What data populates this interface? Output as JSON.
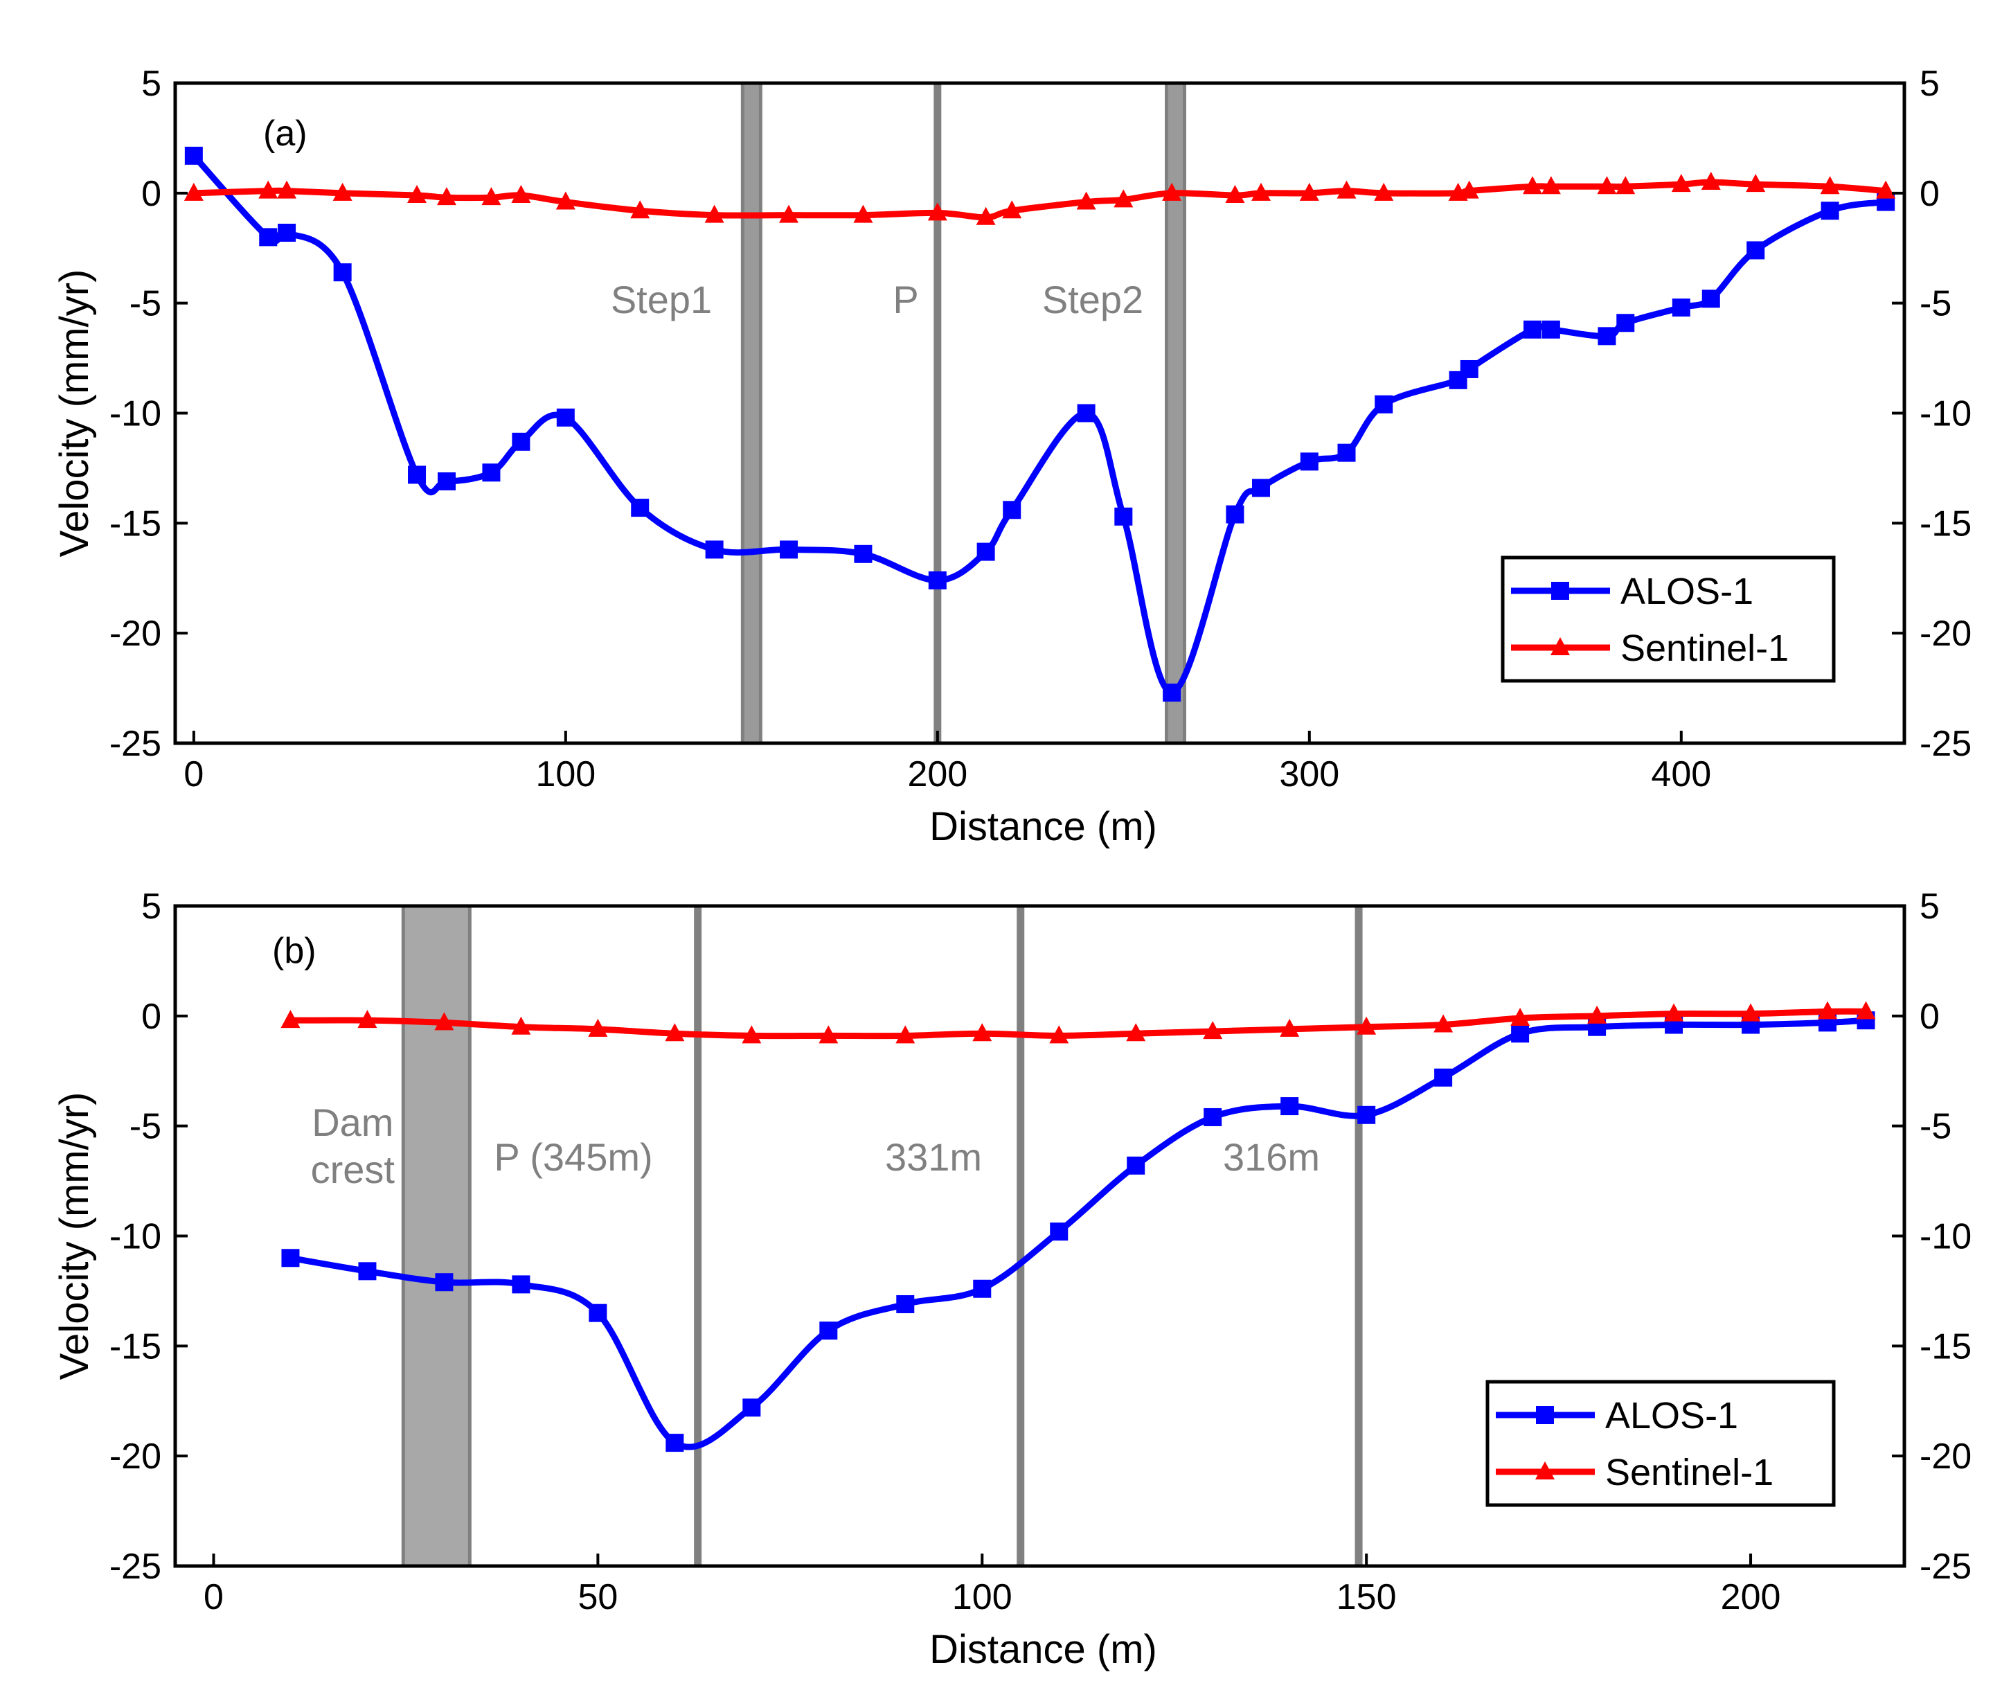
{
  "chart_data": [
    {
      "type": "line",
      "panel_label": "(a)",
      "xlabel": "Distance (m)",
      "ylabel": "Velocity (mm/yr)",
      "xlim": [
        -5,
        460
      ],
      "ylim": [
        -25,
        5
      ],
      "xticks": [
        0,
        100,
        200,
        300,
        400
      ],
      "yticks": [
        5,
        0,
        -5,
        -10,
        -15,
        -20,
        -25
      ],
      "tick_labels_x": [
        "0",
        "100",
        "200",
        "300",
        "400"
      ],
      "tick_labels_y": [
        "5",
        "0",
        "-5",
        "-10",
        "-15",
        "-20",
        "-25"
      ],
      "legend": {
        "position": "bottom-right",
        "entries": [
          "ALOS-1",
          "Sentinel-1"
        ]
      },
      "series": [
        {
          "name": "ALOS-1",
          "color": "#0000ff",
          "marker": "square",
          "x": [
            0,
            20,
            25,
            40,
            60,
            68,
            80,
            88,
            100,
            120,
            140,
            160,
            180,
            200,
            213,
            220,
            240,
            250,
            263,
            280,
            287,
            300,
            310,
            320,
            340,
            343,
            360,
            365,
            380,
            385,
            400,
            408,
            420,
            440,
            455
          ],
          "y": [
            1.7,
            -2.0,
            -1.8,
            -3.6,
            -12.8,
            -13.1,
            -12.7,
            -11.3,
            -10.2,
            -14.3,
            -16.2,
            -16.2,
            -16.4,
            -17.6,
            -16.3,
            -14.4,
            -10.0,
            -14.7,
            -22.7,
            -14.6,
            -13.4,
            -12.2,
            -11.8,
            -9.6,
            -8.5,
            -8.0,
            -6.2,
            -6.2,
            -6.5,
            -5.9,
            -5.2,
            -4.8,
            -2.6,
            -0.8,
            -0.4
          ]
        },
        {
          "name": "Sentinel-1",
          "color": "#ff0000",
          "marker": "triangle",
          "x": [
            0,
            20,
            25,
            40,
            60,
            68,
            80,
            88,
            100,
            120,
            140,
            160,
            180,
            200,
            213,
            220,
            240,
            250,
            263,
            280,
            287,
            300,
            310,
            320,
            340,
            343,
            360,
            365,
            380,
            385,
            400,
            408,
            420,
            440,
            455
          ],
          "y": [
            0.0,
            0.1,
            0.1,
            0.0,
            -0.1,
            -0.2,
            -0.2,
            -0.1,
            -0.4,
            -0.8,
            -1.0,
            -1.0,
            -1.0,
            -0.9,
            -1.1,
            -0.8,
            -0.4,
            -0.3,
            0.0,
            -0.1,
            0.0,
            0.0,
            0.1,
            0.0,
            0.0,
            0.1,
            0.3,
            0.3,
            0.3,
            0.3,
            0.4,
            0.5,
            0.4,
            0.3,
            0.1
          ]
        }
      ],
      "vertical_markers": [
        {
          "x": 150,
          "kind": "band",
          "label": "Step1"
        },
        {
          "x": 200,
          "kind": "line",
          "label": "P"
        },
        {
          "x": 264,
          "kind": "band",
          "label": "Step2"
        }
      ]
    },
    {
      "type": "line",
      "panel_label": "(b)",
      "xlabel": "Distance (m)",
      "ylabel": "Velocity (mm/yr)",
      "xlim": [
        -5,
        220
      ],
      "ylim": [
        -25,
        5
      ],
      "xticks": [
        0,
        50,
        100,
        150,
        200
      ],
      "yticks": [
        5,
        0,
        -5,
        -10,
        -15,
        -20,
        -25
      ],
      "tick_labels_x": [
        "0",
        "50",
        "100",
        "150",
        "200"
      ],
      "tick_labels_y": [
        "5",
        "0",
        "-5",
        "-10",
        "-15",
        "-20",
        "-25"
      ],
      "legend": {
        "position": "bottom-right",
        "entries": [
          "ALOS-1",
          "Sentinel-1"
        ]
      },
      "series": [
        {
          "name": "ALOS-1",
          "color": "#0000ff",
          "marker": "square",
          "x": [
            10,
            20,
            30,
            40,
            50,
            60,
            70,
            80,
            90,
            100,
            110,
            120,
            130,
            140,
            150,
            160,
            170,
            180,
            190,
            200,
            210,
            215
          ],
          "y": [
            -11.0,
            -11.6,
            -12.1,
            -12.2,
            -13.5,
            -19.4,
            -17.8,
            -14.3,
            -13.1,
            -12.4,
            -9.8,
            -6.8,
            -4.6,
            -4.1,
            -4.5,
            -2.8,
            -0.8,
            -0.5,
            -0.4,
            -0.4,
            -0.3,
            -0.2
          ]
        },
        {
          "name": "Sentinel-1",
          "color": "#ff0000",
          "marker": "triangle",
          "x": [
            10,
            20,
            30,
            40,
            50,
            60,
            70,
            80,
            90,
            100,
            110,
            120,
            130,
            140,
            150,
            160,
            170,
            180,
            190,
            200,
            210,
            215
          ],
          "y": [
            -0.2,
            -0.2,
            -0.3,
            -0.5,
            -0.6,
            -0.8,
            -0.9,
            -0.9,
            -0.9,
            -0.8,
            -0.9,
            -0.8,
            -0.7,
            -0.6,
            -0.5,
            -0.4,
            -0.1,
            0.0,
            0.1,
            0.1,
            0.2,
            0.2
          ]
        }
      ],
      "vertical_markers": [
        {
          "x": 29,
          "kind": "wide-band",
          "label": "Dam crest"
        },
        {
          "x": 63,
          "kind": "line",
          "label": "P (345m)"
        },
        {
          "x": 105,
          "kind": "line",
          "label": "331m"
        },
        {
          "x": 149,
          "kind": "line",
          "label": "316m"
        }
      ]
    }
  ]
}
